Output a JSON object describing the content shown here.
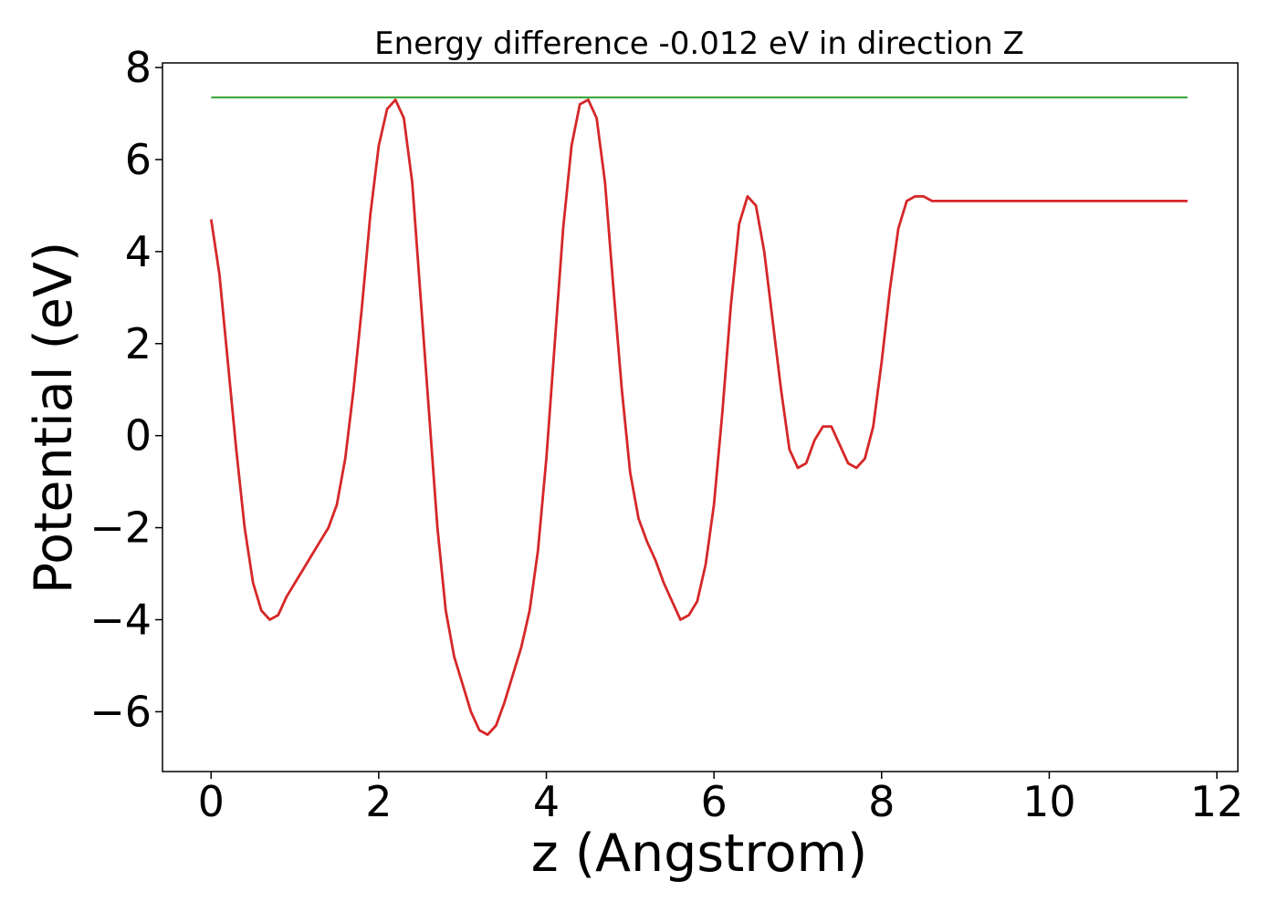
{
  "chart_data": {
    "type": "line",
    "title": "Energy difference -0.012 eV in direction Z",
    "xlabel": "z (Angstrom)",
    "ylabel": "Potential (eV)",
    "xlim": [
      -0.58,
      12.25
    ],
    "ylim": [
      -7.3,
      8.1
    ],
    "xticks": [
      0,
      2,
      4,
      6,
      8,
      10,
      12
    ],
    "yticks": [
      8,
      6,
      4,
      2,
      0,
      -2,
      -4,
      -6
    ],
    "xtick_labels": [
      "0",
      "2",
      "4",
      "6",
      "8",
      "10",
      "12"
    ],
    "ytick_labels": [
      "8",
      "6",
      "4",
      "2",
      "0",
      "−2",
      "−4",
      "−6"
    ],
    "grid": false,
    "series": [
      {
        "color": "#d62728",
        "x": [
          0.0,
          0.1,
          0.2,
          0.3,
          0.4,
          0.5,
          0.6,
          0.7,
          0.8,
          0.9,
          1.0,
          1.1,
          1.2,
          1.3,
          1.4,
          1.5,
          1.6,
          1.7,
          1.8,
          1.9,
          2.0,
          2.1,
          2.2,
          2.3,
          2.4,
          2.5,
          2.6,
          2.7,
          2.8,
          2.9,
          3.0,
          3.1,
          3.2,
          3.3,
          3.4,
          3.5,
          3.6,
          3.7,
          3.8,
          3.9,
          4.0,
          4.1,
          4.2,
          4.3,
          4.4,
          4.5,
          4.6,
          4.7,
          4.8,
          4.9,
          5.0,
          5.1,
          5.2,
          5.3,
          5.4,
          5.5,
          5.6,
          5.7,
          5.8,
          5.9,
          6.0,
          6.1,
          6.2,
          6.3,
          6.4,
          6.5,
          6.6,
          6.7,
          6.8,
          6.9,
          7.0,
          7.1,
          7.2,
          7.3,
          7.4,
          7.5,
          7.6,
          7.7,
          7.8,
          7.9,
          8.0,
          8.1,
          8.2,
          8.3,
          8.4,
          8.5,
          8.6,
          8.7,
          8.8,
          8.9,
          9.0,
          9.1,
          9.2,
          9.3,
          9.4,
          9.5,
          9.6,
          9.7,
          9.8,
          9.9,
          10.0,
          10.1,
          10.2,
          10.3,
          10.4,
          10.5,
          10.6,
          10.7,
          10.8,
          10.9,
          11.0,
          11.1,
          11.2,
          11.3,
          11.4,
          11.5,
          11.6,
          11.65
        ],
        "y": [
          4.7,
          3.5,
          1.6,
          -0.3,
          -2.0,
          -3.2,
          -3.8,
          -4.0,
          -3.9,
          -3.5,
          -3.2,
          -2.9,
          -2.6,
          -2.3,
          -2.0,
          -1.5,
          -0.5,
          1.0,
          2.8,
          4.8,
          6.3,
          7.1,
          7.3,
          6.9,
          5.5,
          3.0,
          0.5,
          -2.0,
          -3.8,
          -4.8,
          -5.4,
          -6.0,
          -6.4,
          -6.5,
          -6.3,
          -5.8,
          -5.2,
          -4.6,
          -3.8,
          -2.5,
          -0.5,
          2.0,
          4.5,
          6.3,
          7.2,
          7.3,
          6.9,
          5.5,
          3.2,
          1.0,
          -0.8,
          -1.8,
          -2.3,
          -2.7,
          -3.2,
          -3.6,
          -4.0,
          -3.9,
          -3.6,
          -2.8,
          -1.5,
          0.5,
          2.8,
          4.6,
          5.2,
          5.0,
          4.0,
          2.5,
          1.0,
          -0.3,
          -0.7,
          -0.6,
          -0.1,
          0.2,
          0.2,
          -0.2,
          -0.6,
          -0.7,
          -0.5,
          0.2,
          1.6,
          3.2,
          4.5,
          5.1,
          5.2,
          5.2,
          5.1,
          5.1,
          5.1,
          5.1,
          5.1,
          5.1,
          5.1,
          5.1,
          5.1,
          5.1,
          5.1,
          5.1,
          5.1,
          5.1,
          5.1,
          5.1,
          5.1,
          5.1,
          5.1,
          5.1,
          5.1,
          5.1,
          5.1,
          5.1,
          5.1,
          5.1,
          5.1,
          5.1,
          5.1,
          5.1,
          5.1,
          5.1
        ]
      },
      {
        "color": "#2ca02c",
        "x": [
          0.0,
          11.65
        ],
        "y": [
          7.35,
          7.35
        ]
      }
    ]
  }
}
